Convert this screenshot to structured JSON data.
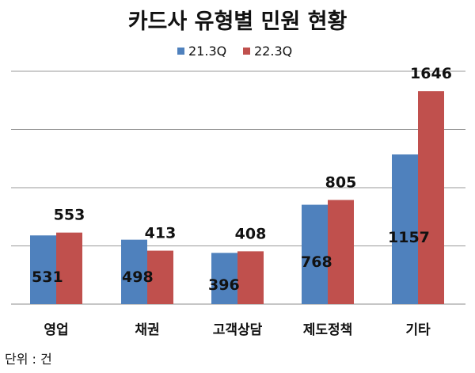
{
  "chart_data": {
    "type": "bar",
    "title": "카드사 유형별 민원 현황",
    "unit_note": "단위 : 건",
    "categories": [
      "영업",
      "채권",
      "고객상담",
      "제도정책",
      "기타"
    ],
    "series": [
      {
        "name": "21.3Q",
        "color": "#4f81bd",
        "values": [
          531,
          498,
          396,
          768,
          1157
        ]
      },
      {
        "name": "22.3Q",
        "color": "#c0504d",
        "values": [
          553,
          413,
          408,
          805,
          1646
        ]
      }
    ],
    "ylim": [
      0,
      1800
    ],
    "grid": true,
    "legend": "top-center",
    "gridline_color": "#7f7f7f"
  }
}
